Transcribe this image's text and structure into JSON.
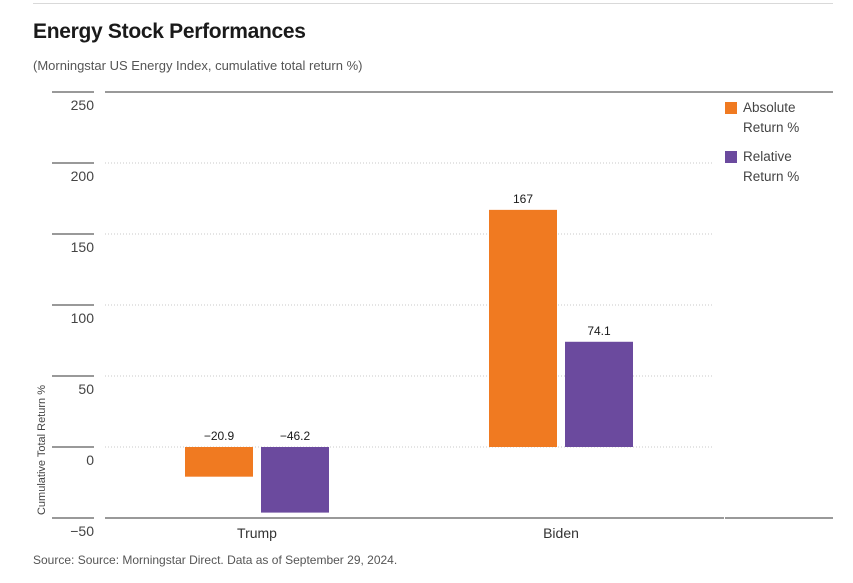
{
  "title": "Energy Stock Performances",
  "subtitle": "(Morningstar US Energy Index, cumulative total return %)",
  "source": "Source: Source: Morningstar Direct. Data as of September 29, 2024.",
  "chart_data": {
    "type": "bar",
    "categories": [
      "Trump",
      "Biden"
    ],
    "series": [
      {
        "name": "Absolute Return %",
        "values": [
          -20.9,
          167
        ],
        "labels": [
          "−20.9",
          "167"
        ],
        "color": "#f07a21"
      },
      {
        "name": "Relative Return %",
        "values": [
          -46.2,
          74.1
        ],
        "labels": [
          "−46.2",
          "74.1"
        ],
        "color": "#6b4a9e"
      }
    ],
    "ylabel": "Cumulative Total Return %",
    "ylim": [
      -50,
      250
    ],
    "yticks": [
      250,
      200,
      150,
      100,
      50,
      0,
      -50
    ],
    "ytick_labels": [
      "250",
      "200",
      "150",
      "100",
      "50",
      "0",
      "−50"
    ],
    "grid": true,
    "legend_position": "right"
  }
}
